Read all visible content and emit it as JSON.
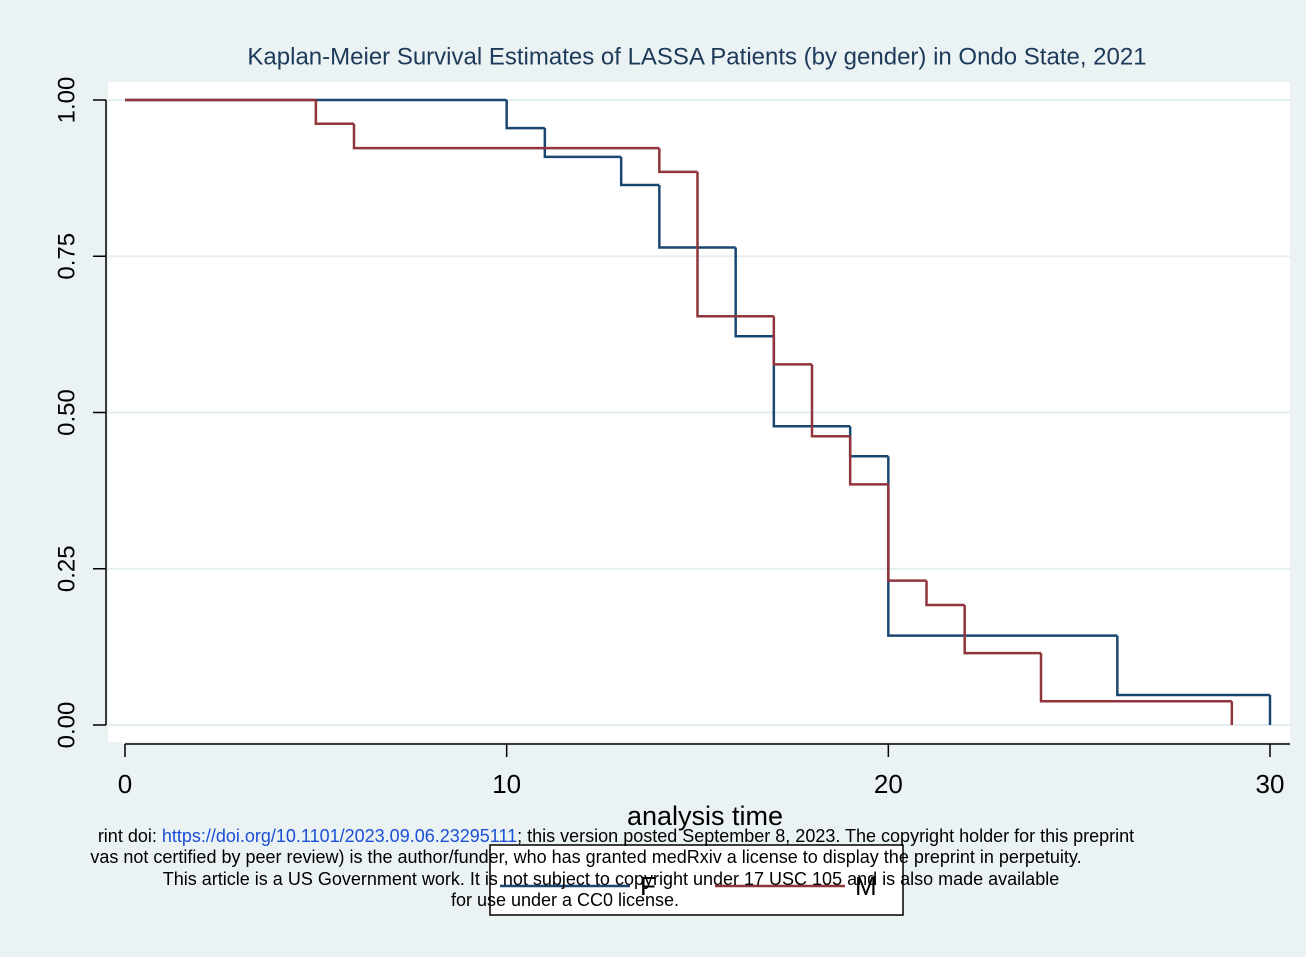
{
  "chart_data": {
    "type": "step",
    "title": "Kaplan-Meier Survival Estimates of LASSA Patients (by gender) in Ondo State, 2021",
    "xlabel": "analysis time",
    "xlim": [
      0,
      30
    ],
    "ylim": [
      0,
      1
    ],
    "xticks": [
      0,
      10,
      20,
      30
    ],
    "yticks": [
      {
        "value": 0,
        "label": "0.00"
      },
      {
        "value": 0.25,
        "label": "0.25"
      },
      {
        "value": 0.5,
        "label": "0.50"
      },
      {
        "value": 0.75,
        "label": "0.75"
      },
      {
        "value": 1,
        "label": "1.00"
      }
    ],
    "grid": true,
    "series": [
      {
        "name": "F",
        "color": "#1a476f",
        "x": [
          0,
          10,
          11,
          13,
          14,
          16,
          17,
          19,
          20,
          26,
          30
        ],
        "values": [
          1,
          0.955,
          0.909,
          0.864,
          0.764,
          0.622,
          0.478,
          0.43,
          0.143,
          0.048,
          0
        ]
      },
      {
        "name": "M",
        "color": "#90353b",
        "x": [
          0,
          5,
          6,
          14,
          15,
          17,
          18,
          19,
          20,
          21,
          22,
          24,
          29
        ],
        "values": [
          1,
          0.962,
          0.923,
          0.885,
          0.654,
          0.577,
          0.462,
          0.385,
          0.231,
          0.192,
          0.115,
          0.038,
          0
        ]
      }
    ]
  },
  "notice": {
    "line1_prefix": "rint doi: ",
    "link": "https://doi.org/10.1101/2023.09.06.23295111",
    "line1_suffix": "; this version posted September 8, 2023. The copyright holder for this preprint",
    "line2": "vas not certified by peer review) is the author/funder, who has granted medRxiv a license to display the preprint in perpetuity.",
    "line3": "This article is a US Government work. It is not subject to copyright under 17 USC 105 and is also made available",
    "line4": "for use under a CC0 license."
  }
}
